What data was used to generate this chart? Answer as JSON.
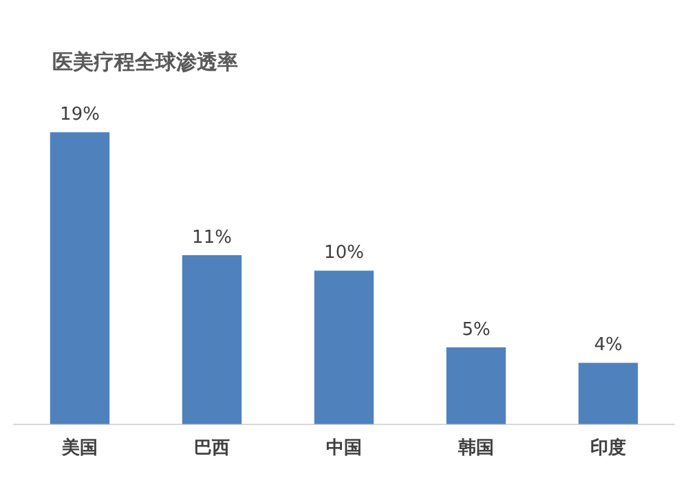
{
  "chart_data": {
    "type": "bar",
    "title": "医美疗程全球渗透率",
    "categories": [
      "美国",
      "巴西",
      "中国",
      "韩国",
      "印度"
    ],
    "values": [
      19,
      11,
      10,
      5,
      4
    ],
    "value_labels": [
      "19%",
      "11%",
      "10%",
      "5%",
      "4%"
    ],
    "color": "#4f81bd",
    "grid": false,
    "legend": false,
    "tick_labels": "x"
  }
}
